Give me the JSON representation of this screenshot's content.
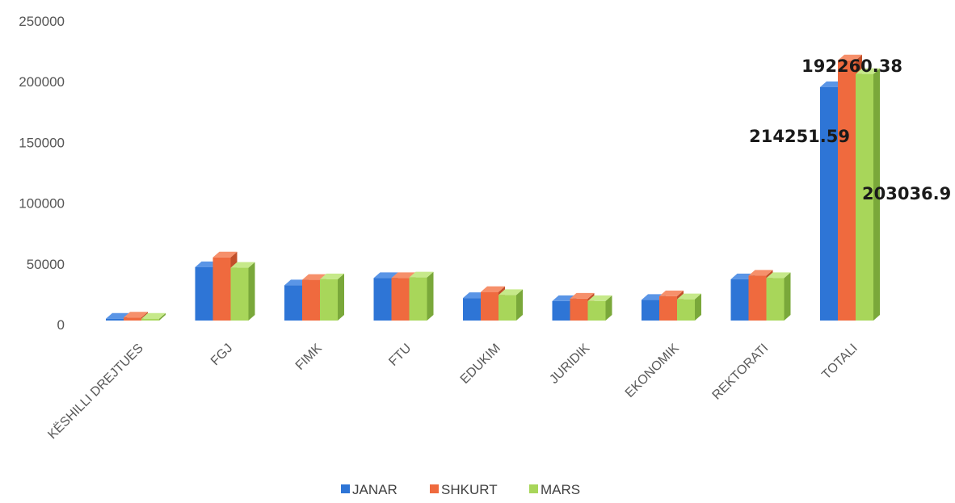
{
  "chart_data": {
    "type": "bar",
    "style": "3d-clustered-column",
    "categories": [
      "KËSHILLI DREJTUES",
      "FGJ",
      "FIMK",
      "FTU",
      "EDUKIM",
      "JURIDIK",
      "EKONOMIK",
      "REKTORATI",
      "TOTALI"
    ],
    "series": [
      {
        "name": "JANAR",
        "color": "#2e75d6",
        "side": "#1f5aa8",
        "top": "#5a95e6",
        "values": [
          1500,
          44000,
          29000,
          35000,
          18500,
          16000,
          17000,
          34000,
          192260.38
        ]
      },
      {
        "name": "SHKURT",
        "color": "#ef6a3e",
        "side": "#c24f2a",
        "top": "#f6906b",
        "values": [
          2500,
          52000,
          33500,
          35000,
          23500,
          18000,
          20000,
          37000,
          214251.59
        ]
      },
      {
        "name": "MARS",
        "color": "#a8d65a",
        "side": "#7aa83a",
        "top": "#c6e98a",
        "values": [
          1500,
          43500,
          34000,
          35500,
          21000,
          16000,
          17500,
          35000,
          203036.9
        ]
      }
    ],
    "data_labels": [
      "192260.38",
      "214251.59",
      "203036.9"
    ],
    "y_ticks": [
      "0",
      "50000",
      "100000",
      "150000",
      "200000",
      "250000"
    ],
    "ylim": [
      0,
      250000
    ],
    "title": "",
    "xlabel": "",
    "ylabel": "",
    "grid": false,
    "legend_position": "bottom"
  }
}
